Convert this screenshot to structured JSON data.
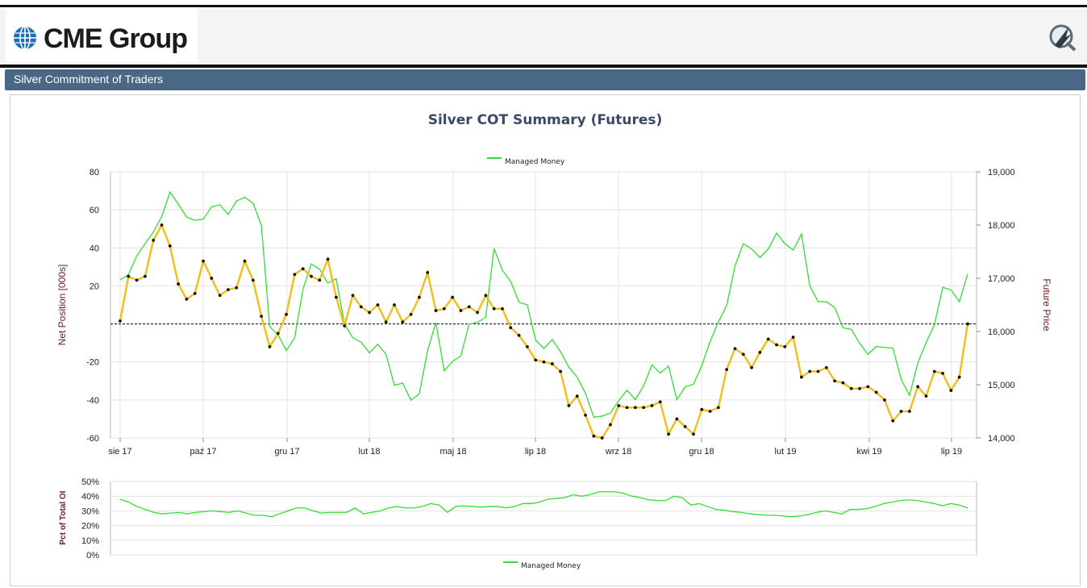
{
  "header": {
    "logo_text": "CME Group",
    "logo_icon": "globe-icon",
    "quikstrike_icon": "quikstrike-icon"
  },
  "panel": {
    "title": "Silver Commitment of Traders"
  },
  "colors": {
    "net_position_line": "#f0c020",
    "future_price_line": "#33dd33",
    "pct_line": "#33dd33",
    "titlebar": "#4a6785",
    "chart_title": "#3a4a66",
    "axis_label": "#6b1f1f"
  },
  "chart_data": [
    {
      "type": "line",
      "title": "Silver COT Summary (Futures)",
      "legend": [
        "Managed Money"
      ],
      "legend_position": "top-center",
      "ylabel": "Net Position [000s]",
      "y2label": "Future Price",
      "ylim": [
        -60,
        80
      ],
      "y2lim": [
        14000,
        19000
      ],
      "yticks": [
        "80",
        "60",
        "40",
        "20",
        "",
        "-20",
        "-40",
        "-60"
      ],
      "y2ticks": [
        "19,000",
        "18,000",
        "17,000",
        "16,000",
        "15,000",
        "14,000"
      ],
      "xticks": [
        "sie 17",
        "paź 17",
        "gru 17",
        "lut 18",
        "maj 18",
        "lip 18",
        "wrz 18",
        "gru 18",
        "lut 19",
        "kwi 19",
        "lip 19"
      ],
      "grid": true,
      "zero_line": "dashed",
      "series": [
        {
          "name": "Managed Money",
          "axis": "left",
          "values": [
            1.5,
            25,
            23,
            25,
            44,
            52,
            41,
            21,
            13,
            16,
            33,
            24,
            15,
            18,
            19,
            33,
            23,
            4,
            -12,
            -5,
            5,
            26,
            29,
            25,
            23,
            34,
            14,
            -1,
            15,
            9,
            6,
            10,
            1,
            10,
            1,
            5,
            14,
            27,
            7,
            8,
            14,
            7,
            9,
            6,
            15,
            8,
            8,
            -2,
            -6,
            -12,
            -19,
            -20,
            -21,
            -25,
            -43,
            -38,
            -48,
            -59,
            -60,
            -53,
            -43,
            -44,
            -44,
            -44,
            -43,
            -41,
            -58,
            -50,
            -54,
            -58,
            -45,
            -46,
            -44,
            -24,
            -13,
            -16,
            -23,
            -15,
            -8,
            -11,
            -12,
            -7,
            -28,
            -25,
            -25,
            -23,
            -30,
            -31,
            -34,
            -34,
            -33,
            -36,
            -40,
            -51,
            -46,
            -46,
            -33,
            -38,
            -25,
            -26,
            -35,
            -28,
            0
          ]
        },
        {
          "name": "Future Price",
          "axis": "right",
          "values": [
            16970,
            17070,
            17420,
            17650,
            17870,
            18160,
            18620,
            18390,
            18150,
            18090,
            18110,
            18340,
            18380,
            18200,
            18450,
            18520,
            18410,
            17990,
            16090,
            15940,
            15640,
            15880,
            16790,
            17270,
            17170,
            16910,
            16990,
            16140,
            15880,
            15800,
            15600,
            15760,
            15570,
            14990,
            15030,
            14710,
            14830,
            15640,
            16170,
            15260,
            15440,
            15540,
            16140,
            16170,
            16270,
            17560,
            17150,
            16940,
            16550,
            16500,
            15840,
            15680,
            15850,
            15620,
            15330,
            15140,
            14840,
            14390,
            14410,
            14470,
            14700,
            14900,
            14720,
            14980,
            15370,
            15220,
            15350,
            14720,
            14960,
            15010,
            15360,
            15810,
            16180,
            16490,
            17230,
            17650,
            17550,
            17390,
            17550,
            17850,
            17650,
            17530,
            17830,
            16860,
            16560,
            16560,
            16450,
            16070,
            16040,
            15780,
            15570,
            15720,
            15700,
            15690,
            15100,
            14800,
            15410,
            15790,
            16130,
            16830,
            16780,
            16560,
            17080
          ]
        }
      ]
    },
    {
      "type": "line",
      "ylabel": "Pct of Total OI",
      "ylim": [
        0,
        50
      ],
      "yticks": [
        "50%",
        "40%",
        "30%",
        "20%",
        "10%",
        "0%"
      ],
      "legend": [
        "Managed Money"
      ],
      "legend_position": "bottom-center",
      "grid": true,
      "series": [
        {
          "name": "Managed Money",
          "values": [
            38,
            36,
            33,
            31,
            29,
            28,
            28.5,
            29,
            28,
            29,
            29.5,
            30,
            29.5,
            29,
            30,
            28.5,
            27,
            27,
            26,
            28,
            30,
            32,
            32,
            30,
            28.5,
            29,
            29,
            29,
            32,
            28,
            29,
            30,
            32,
            33,
            32,
            32,
            33,
            35,
            34,
            29,
            33,
            33.5,
            33,
            32.5,
            33,
            33,
            32,
            33,
            35,
            35,
            36,
            38,
            38.5,
            39,
            41,
            40,
            41,
            43,
            43,
            43,
            42,
            40,
            39,
            37.5,
            37,
            37,
            40,
            39,
            34,
            35,
            33,
            31,
            30.5,
            29.5,
            29,
            28,
            27.5,
            27,
            27,
            26.5,
            26,
            26.5,
            27.5,
            29,
            30,
            29,
            28,
            31,
            31,
            31.5,
            33,
            35,
            36,
            37,
            37.5,
            37,
            36,
            35,
            33.5,
            35,
            34,
            32
          ]
        }
      ]
    }
  ]
}
